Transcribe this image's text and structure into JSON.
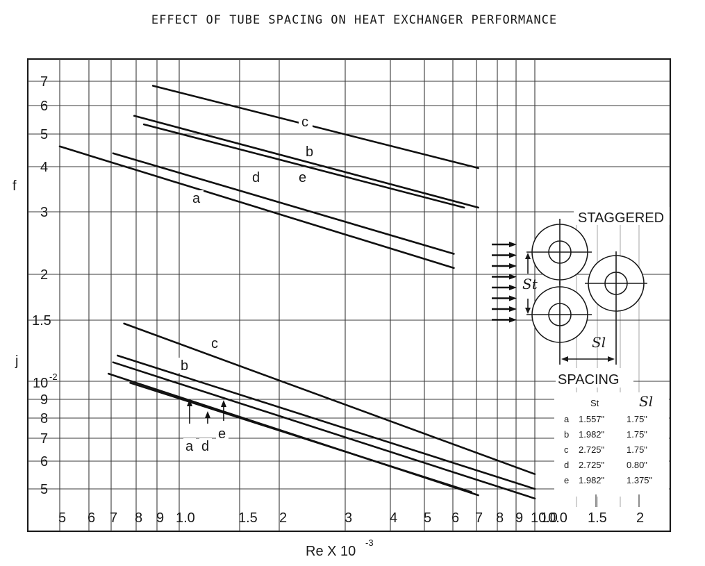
{
  "chart_data": {
    "type": "line",
    "title": "EFFECT OF TUBE SPACING ON HEAT EXCHANGER PERFORMANCE",
    "xlabel": "Re X 10",
    "xlabel_exponent": "-3",
    "x_scale": "log",
    "xlim": [
      0.5,
      10.0
    ],
    "x_tick_labels": [
      "5",
      "6",
      "7",
      "8",
      "9",
      "1.0",
      "1.5",
      "2",
      "3",
      "4",
      "5",
      "6",
      "7",
      "8",
      "9",
      "10.0"
    ],
    "y_scale": "log",
    "grid": true,
    "panels": [
      {
        "ylabel": "f",
        "y_tick_labels": [
          "7",
          "6",
          "5",
          "4",
          "3",
          "2",
          "1.5"
        ],
        "series": [
          {
            "name": "c",
            "x": [
              0.9,
              7.0
            ],
            "y": [
              0.068,
              0.04
            ]
          },
          {
            "name": "b",
            "x": [
              0.8,
              7.0
            ],
            "y": [
              0.056,
              0.031
            ]
          },
          {
            "name": "e",
            "x": [
              0.85,
              6.4
            ],
            "y": [
              0.053,
              0.031
            ]
          },
          {
            "name": "d",
            "x": [
              0.7,
              6.0
            ],
            "y": [
              0.044,
              0.023
            ]
          },
          {
            "name": "a",
            "x": [
              0.5,
              6.0
            ],
            "y": [
              0.046,
              0.021
            ]
          }
        ]
      },
      {
        "ylabel": "j",
        "y_tick_label_main": "10",
        "y_tick_label_exponent": "-2",
        "y_tick_labels": [
          "9",
          "8",
          "7",
          "6",
          "5"
        ],
        "series": [
          {
            "name": "c",
            "x": [
              0.75,
              10.0
            ],
            "y": [
              0.0145,
              0.0055
            ]
          },
          {
            "name": "b",
            "x": [
              0.72,
              10.0
            ],
            "y": [
              0.0118,
              0.005
            ]
          },
          {
            "name": "d",
            "x": [
              0.7,
              10.0
            ],
            "y": [
              0.0113,
              0.0047
            ]
          },
          {
            "name": "e",
            "x": [
              0.68,
              7.0
            ],
            "y": [
              0.0105,
              0.0048
            ]
          },
          {
            "name": "a",
            "x": [
              0.78,
              6.7
            ],
            "y": [
              0.0099,
              0.0049
            ]
          }
        ],
        "arrow_labels": [
          "a",
          "d",
          "e"
        ]
      }
    ],
    "diagram": {
      "arrangement_label": "STAGGERED",
      "spacing_label": "SPACING",
      "st_label": "St",
      "sl_label": "Sl",
      "scale_ticks": [
        "10.0",
        "1.5",
        "2"
      ],
      "table_headers": [
        "St",
        "Sl"
      ],
      "table_rows": [
        {
          "key": "a",
          "st": "1.557\"",
          "sl": "1.75\""
        },
        {
          "key": "b",
          "st": "1.982\"",
          "sl": "1.75\""
        },
        {
          "key": "c",
          "st": "2.725\"",
          "sl": "1.75\""
        },
        {
          "key": "d",
          "st": "2.725\"",
          "sl": "0.80\""
        },
        {
          "key": "e",
          "st": "1.982\"",
          "sl": "1.375\""
        }
      ]
    }
  }
}
